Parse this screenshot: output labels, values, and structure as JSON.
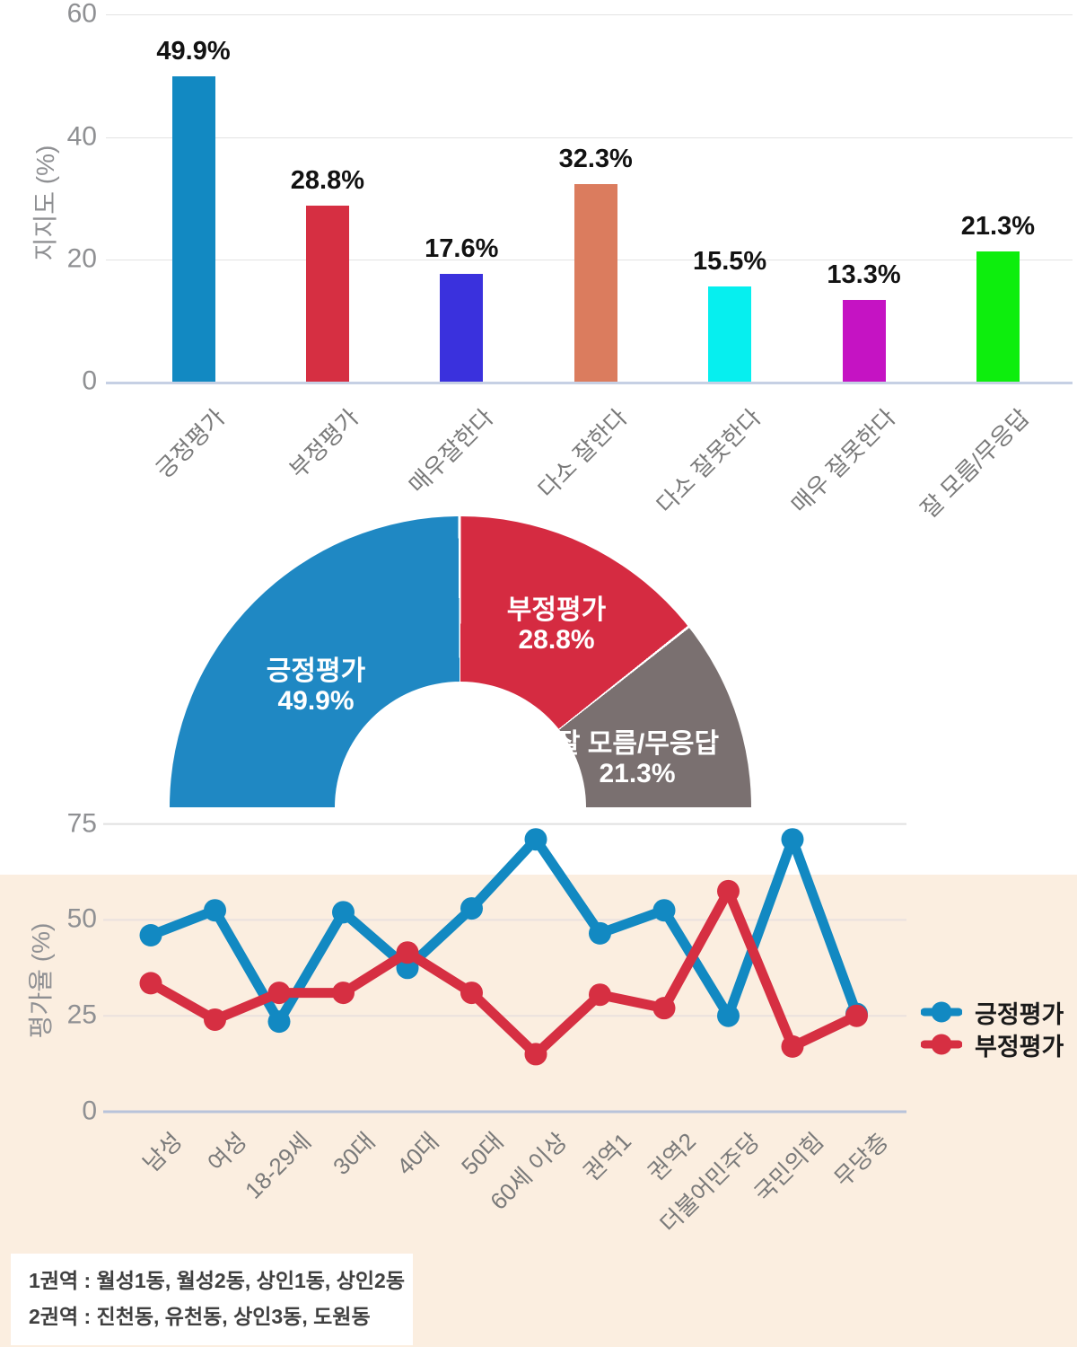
{
  "chart_data": [
    {
      "type": "bar",
      "title": "",
      "ylabel": "지지도 (%)",
      "yticks": [
        60,
        40,
        20,
        0
      ],
      "ylim": [
        0,
        60
      ],
      "grid": true,
      "categories": [
        "긍정평가",
        "부정평가",
        "매우잘한다",
        "다소 잘한다",
        "다소 잘못한다",
        "매우 잘못한다",
        "잘 모름/무응답"
      ],
      "values": [
        49.9,
        28.8,
        17.6,
        32.3,
        15.5,
        13.3,
        21.3
      ],
      "value_labels": [
        "49.9%",
        "28.8%",
        "17.6%",
        "32.3%",
        "15.5%",
        "13.3%",
        "21.3%"
      ],
      "colors": [
        "#1289c2",
        "#d62f42",
        "#3a31dd",
        "#db7c5e",
        "#06efef",
        "#c513c3",
        "#0dee0d"
      ]
    },
    {
      "type": "pie",
      "subtype": "half-donut",
      "slices": [
        {
          "label": "긍정평가",
          "value": 49.9,
          "value_label": "49.9%",
          "color": "#1f88c3"
        },
        {
          "label": "부정평가",
          "value": 28.8,
          "value_label": "28.8%",
          "color": "#d52b41"
        },
        {
          "label": "잘 모름/무응답",
          "value": 21.3,
          "value_label": "21.3%",
          "color": "#7a7070"
        }
      ]
    },
    {
      "type": "line",
      "ylabel": "평가율 (%)",
      "yticks": [
        75,
        50,
        25,
        0
      ],
      "ylim": [
        0,
        75
      ],
      "grid": true,
      "legend_position": "right",
      "categories": [
        "남성",
        "여성",
        "18-29세",
        "30대",
        "40대",
        "50대",
        "60세 이상",
        "권역1",
        "권역2",
        "더불어민주당",
        "국민의힘",
        "무당층"
      ],
      "series": [
        {
          "name": "긍정평가",
          "color": "#1289c2",
          "values": [
            46,
            52.5,
            23.5,
            52,
            37.5,
            53,
            71,
            46.5,
            52.5,
            25,
            71,
            25.5
          ]
        },
        {
          "name": "부정평가",
          "color": "#d62f42",
          "values": [
            33.5,
            24,
            31,
            31,
            41.5,
            31,
            15,
            30.5,
            27,
            57.5,
            17,
            25
          ]
        }
      ],
      "plot_band_color": "#fbeee0"
    }
  ],
  "footnote": {
    "line1": "1권역 : 월성1동, 월성2동, 상인1동, 상인2동",
    "line2": "2권역 : 진천동, 유천동, 상인3동, 도원동"
  }
}
